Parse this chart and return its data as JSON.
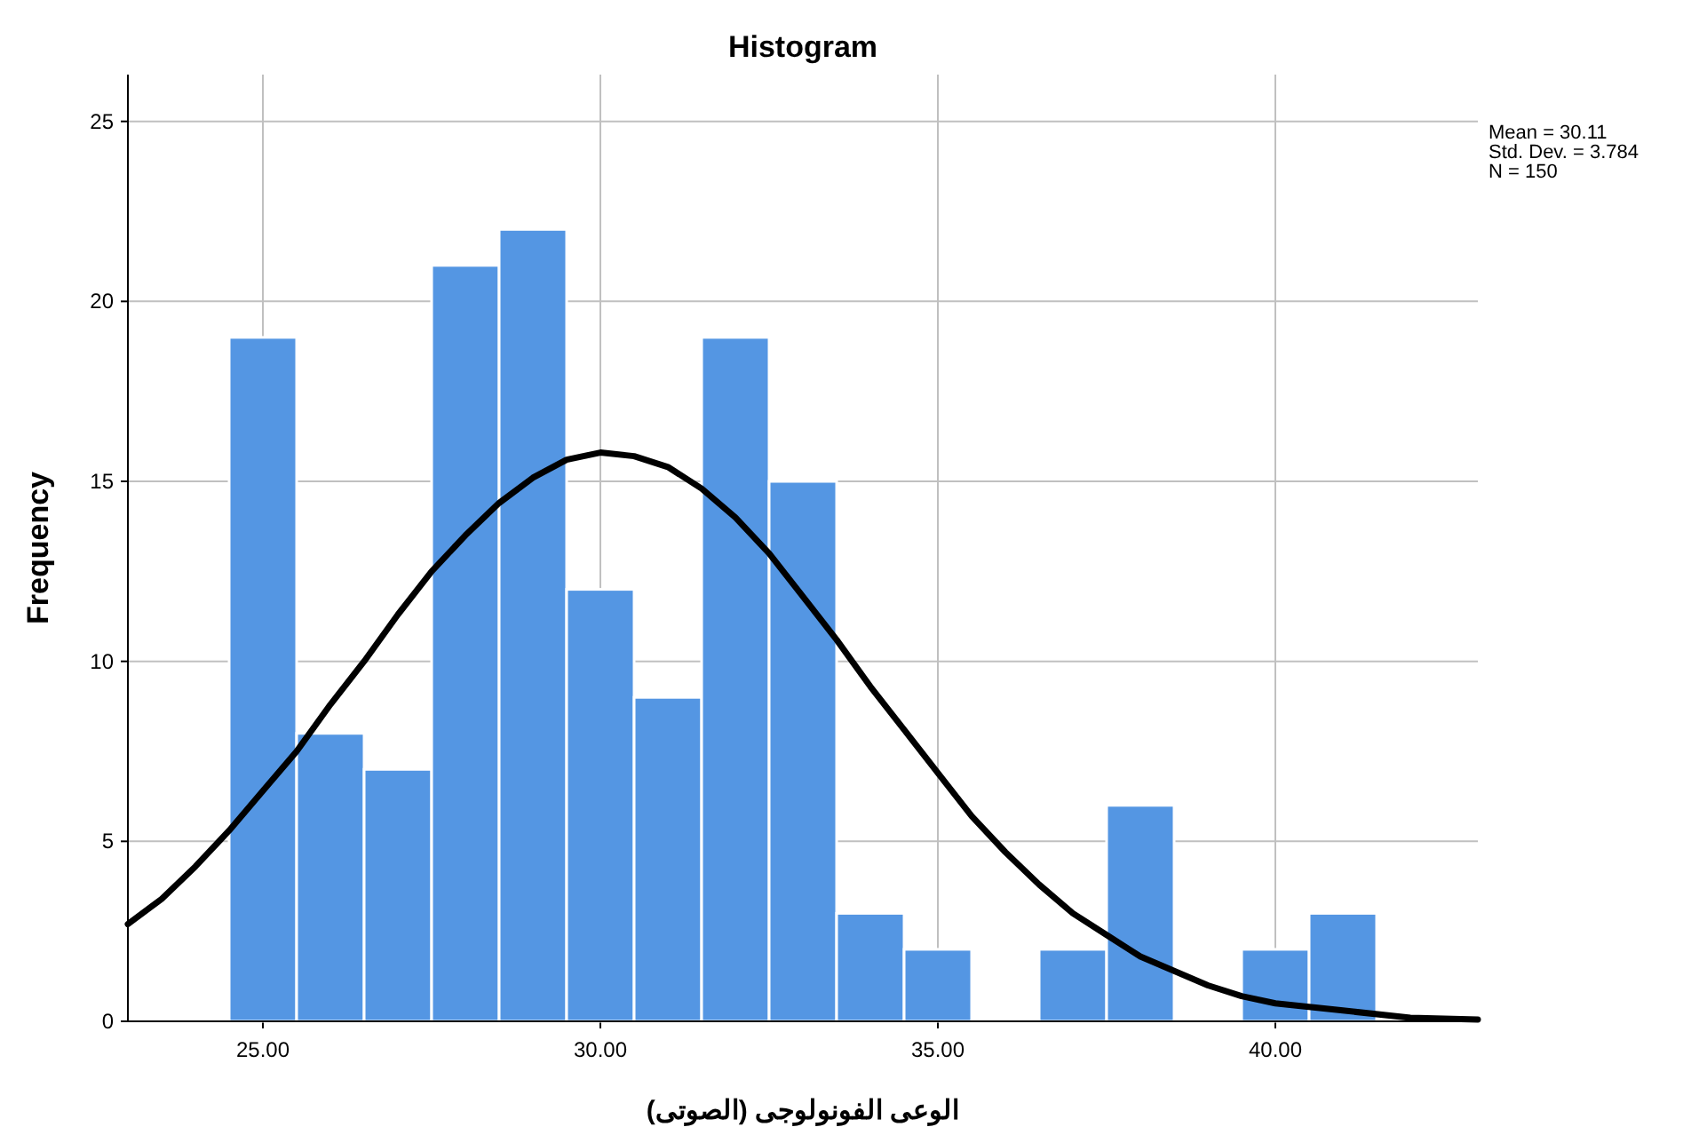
{
  "chart_data": {
    "type": "histogram",
    "title": "Histogram",
    "xlabel": "الوعى الفونولوجى (الصوتى)",
    "ylabel": "Frequency",
    "bins": [
      24.5,
      25.5,
      26.5,
      27.5,
      28.5,
      29.5,
      30.5,
      31.5,
      32.5,
      33.5,
      34.5,
      35.5,
      36.5,
      37.5,
      38.5,
      39.5,
      40.5,
      41.5
    ],
    "values": [
      19,
      8,
      7,
      21,
      22,
      12,
      9,
      19,
      15,
      3,
      2,
      0,
      2,
      6,
      0,
      2,
      3
    ],
    "color": "#5496e3",
    "series": [
      {
        "type": "line",
        "color": "#000000",
        "x": [
          23,
          23.5,
          24,
          24.5,
          25,
          25.5,
          26,
          26.5,
          27,
          27.5,
          28,
          28.5,
          29,
          29.5,
          30,
          30.5,
          31,
          31.5,
          32,
          32.5,
          33,
          33.5,
          34,
          34.5,
          35,
          35.5,
          36,
          36.5,
          37,
          37.5,
          38,
          38.5,
          39,
          39.5,
          40,
          41,
          42,
          43
        ],
        "values": [
          2.7,
          3.4,
          4.3,
          5.3,
          6.4,
          7.5,
          8.8,
          10.0,
          11.3,
          12.5,
          13.5,
          14.4,
          15.1,
          15.6,
          15.8,
          15.7,
          15.4,
          14.8,
          14.0,
          13.0,
          11.8,
          10.6,
          9.3,
          8.1,
          6.9,
          5.7,
          4.7,
          3.8,
          3.0,
          2.4,
          1.8,
          1.4,
          1.0,
          0.7,
          0.5,
          0.3,
          0.1,
          0.05
        ]
      }
    ],
    "xlim": [
      23,
      43
    ],
    "ylim": [
      0,
      26.3
    ],
    "xticks": [
      {
        "value": 25,
        "label": "25.00"
      },
      {
        "value": 30,
        "label": "30.00"
      },
      {
        "value": 35,
        "label": "35.00"
      },
      {
        "value": 40,
        "label": "40.00"
      }
    ],
    "yticks": [
      0,
      5,
      10,
      15,
      20,
      25
    ],
    "grid": true,
    "annotations": [
      "Mean = 30.11",
      "Std. Dev. = 3.784",
      "N = 150"
    ]
  }
}
